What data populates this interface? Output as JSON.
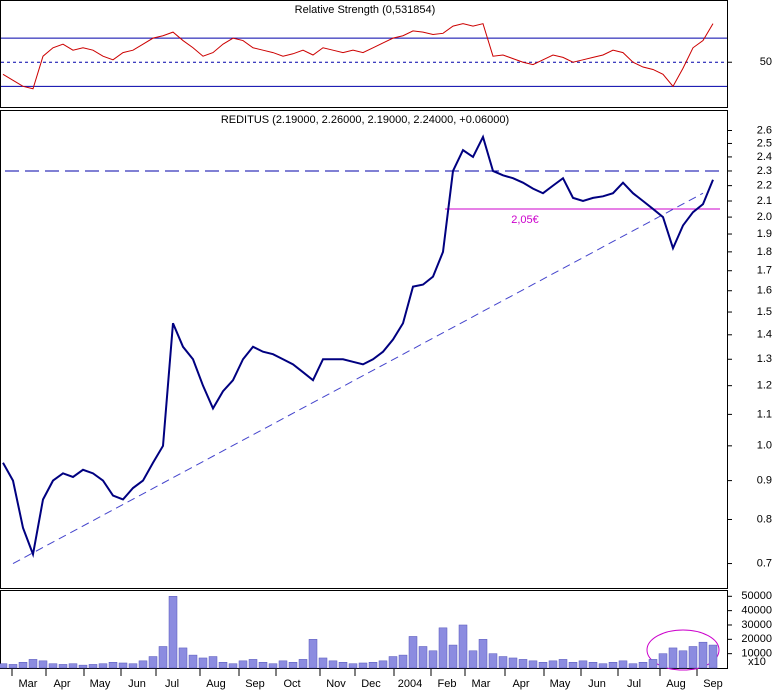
{
  "chart_data": [
    {
      "type": "line",
      "title": "Relative Strength (0,531854)",
      "color": "#cc0000",
      "values": [
        40,
        35,
        30,
        28,
        55,
        62,
        65,
        60,
        62,
        60,
        55,
        52,
        58,
        60,
        65,
        70,
        72,
        75,
        68,
        62,
        55,
        58,
        65,
        70,
        68,
        62,
        60,
        58,
        55,
        57,
        60,
        56,
        62,
        60,
        58,
        60,
        58,
        62,
        66,
        70,
        72,
        76,
        75,
        73,
        74,
        80,
        82,
        80,
        82,
        55,
        56,
        53,
        50,
        48,
        52,
        56,
        54,
        50,
        52,
        54,
        56,
        60,
        58,
        50,
        46,
        44,
        40,
        30,
        45,
        62,
        68,
        82
      ],
      "ylim": [
        12,
        100
      ],
      "yticks": [
        50
      ],
      "reference_lines": [
        30,
        70
      ]
    },
    {
      "type": "line",
      "title": "REDITUS (2.19000, 2.26000, 2.19000, 2.24000, +0.06000)",
      "color": "#000080",
      "log_scale": true,
      "values": [
        0.95,
        0.9,
        0.78,
        0.72,
        0.85,
        0.9,
        0.92,
        0.91,
        0.93,
        0.92,
        0.9,
        0.86,
        0.85,
        0.88,
        0.9,
        0.95,
        1.0,
        1.45,
        1.35,
        1.3,
        1.2,
        1.12,
        1.18,
        1.22,
        1.3,
        1.35,
        1.33,
        1.32,
        1.3,
        1.28,
        1.25,
        1.22,
        1.3,
        1.3,
        1.3,
        1.29,
        1.28,
        1.3,
        1.33,
        1.38,
        1.45,
        1.62,
        1.63,
        1.67,
        1.8,
        2.3,
        2.45,
        2.4,
        2.55,
        2.3,
        2.27,
        2.25,
        2.22,
        2.18,
        2.15,
        2.2,
        2.25,
        2.12,
        2.1,
        2.12,
        2.13,
        2.15,
        2.22,
        2.15,
        2.1,
        2.05,
        2.0,
        1.82,
        1.95,
        2.03,
        2.08,
        2.24
      ],
      "ylim": [
        0.65,
        2.75
      ],
      "yticks": [
        0.7,
        0.8,
        0.9,
        {
          "value": 1,
          "label": "1.0"
        },
        1.1,
        1.2,
        1.3,
        1.4,
        1.5,
        1.6,
        1.7,
        1.8,
        1.9,
        {
          "value": 2,
          "label": "2.0"
        },
        2.1,
        2.2,
        2.3,
        2.4,
        2.5,
        2.6
      ],
      "resistance": 2.3,
      "support": {
        "value": 2.05,
        "label": "2,05€"
      },
      "trendline": [
        0.7,
        2.15
      ]
    },
    {
      "type": "bar",
      "color": "#8c8ce0",
      "values": [
        3000,
        2500,
        4000,
        6000,
        5000,
        3000,
        2500,
        3000,
        2000,
        2500,
        3000,
        4000,
        3500,
        3000,
        5000,
        8000,
        15000,
        50000,
        14000,
        9000,
        7000,
        8000,
        4000,
        3000,
        5000,
        6000,
        4000,
        3000,
        5000,
        4000,
        6000,
        20000,
        7000,
        5000,
        4000,
        3000,
        3500,
        4000,
        5000,
        8000,
        9000,
        22000,
        15000,
        12000,
        28000,
        16000,
        30000,
        12000,
        20000,
        10000,
        8000,
        7000,
        6000,
        5000,
        4000,
        5000,
        6000,
        4000,
        5000,
        4000,
        3000,
        4000,
        5000,
        3000,
        4000,
        6000,
        10000,
        14000,
        12000,
        15000,
        18000,
        16000
      ],
      "ylim": [
        0,
        53000
      ],
      "yticks": [
        10000,
        20000,
        30000,
        40000,
        50000
      ],
      "unit_label": "x10",
      "xtick_labels": [
        "Mar",
        "Apr",
        "May",
        "Jun",
        "Jul",
        "Aug",
        "Sep",
        "Oct",
        "Nov",
        "Dec",
        "2004",
        "Feb",
        "Mar",
        "Apr",
        "May",
        "Jun",
        "Jul",
        "Aug",
        "Sep"
      ]
    }
  ]
}
